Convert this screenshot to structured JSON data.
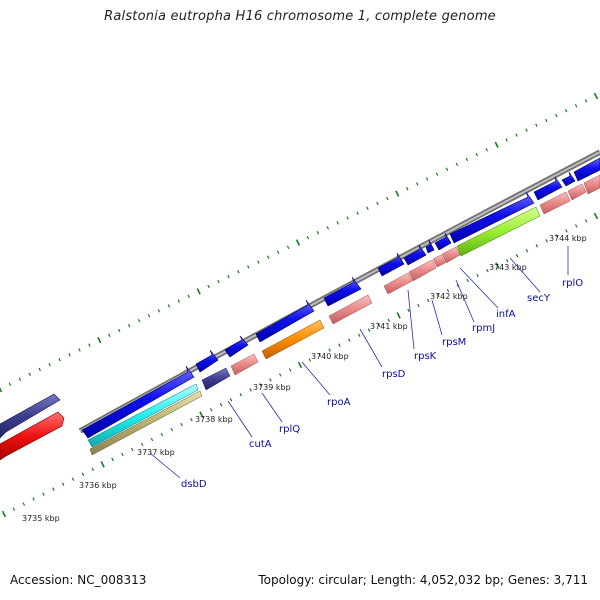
{
  "title": "Ralstonia eutropha H16 chromosome 1, complete genome",
  "accession": "Accession: NC_008313",
  "topology": "Topology: circular; Length: 4,052,032 bp; Genes: 3,711",
  "colors": {
    "backbone": "#8c8c8c",
    "tick": "#1a7a1a",
    "cds_blue": "#1111ee",
    "rrna_pink": "#e88888",
    "purple": "#3d3d8f",
    "red": "#ee1111",
    "cyan": "#22eeee",
    "khaki": "#b8b070",
    "orange": "#ff8c00",
    "lime": "#99ee33",
    "label": "#0a0aa0"
  },
  "scale_labels": [
    "3735 kbp",
    "3736 kbp",
    "3737 kbp",
    "3738 kbp",
    "3739 kbp",
    "3740 kbp",
    "3741 kbp",
    "3742 kbp",
    "3743 kbp",
    "3744 kbp"
  ],
  "gene_labels": [
    "dsbD",
    "cutA",
    "rplQ",
    "rpoA",
    "rpsD",
    "rpsK",
    "rpsM",
    "rpmJ",
    "infA",
    "secY",
    "rplO"
  ]
}
